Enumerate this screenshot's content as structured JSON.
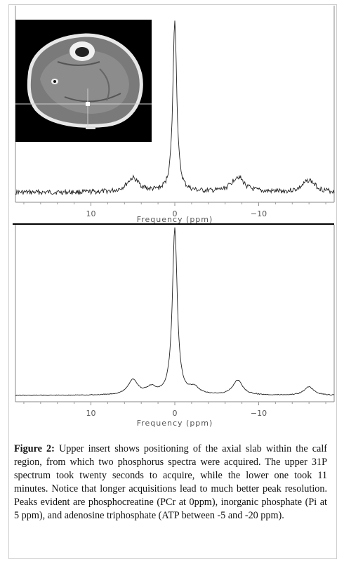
{
  "figure": {
    "caption_label": "Figure 2:",
    "caption_text": "Upper insert shows positioning of the axial slab within the calf region, from which two phosphorus spectra were acquired. The upper 31P spectrum took twenty seconds to acquire, while the lower one took 11 minutes. Notice that longer acquisitions lead to much better peak resolution. Peaks evident are phosphocreatine (PCr at 0ppm), inorganic phosphate (Pi at 5 ppm), and adenosine triphosphate (ATP between -5 and -20 ppm)."
  },
  "top_spectrum": {
    "xlabel": "Frequency (ppm)",
    "ticks": [
      "10",
      "0",
      "−10"
    ],
    "tick_values": [
      10,
      0,
      -10
    ],
    "xlim": [
      19,
      -19
    ],
    "inset": "axial-mri-calf-image"
  },
  "bottom_spectrum": {
    "xlabel": "Frequency (ppm)",
    "ticks": [
      "10",
      "0",
      "−10"
    ],
    "tick_values": [
      10,
      0,
      -10
    ],
    "xlim": [
      19,
      -19
    ]
  },
  "chart_data": [
    {
      "type": "line",
      "title": "",
      "xlabel": "Frequency (ppm)",
      "ylabel": "",
      "xlim": [
        19,
        -19
      ],
      "x_reversed": true,
      "peaks_ppm": [
        5,
        0,
        -7.5,
        -16
      ],
      "peak_relative_heights": [
        0.08,
        1.0,
        0.09,
        0.07
      ],
      "noise": "high"
    },
    {
      "type": "line",
      "title": "",
      "xlabel": "Frequency (ppm)",
      "ylabel": "",
      "xlim": [
        19,
        -19
      ],
      "x_reversed": true,
      "peaks_ppm": [
        5,
        2.8,
        0,
        -2.3,
        -7.5,
        -16
      ],
      "peak_relative_heights": [
        0.09,
        0.04,
        1.0,
        0.04,
        0.09,
        0.05
      ],
      "noise": "low"
    }
  ]
}
